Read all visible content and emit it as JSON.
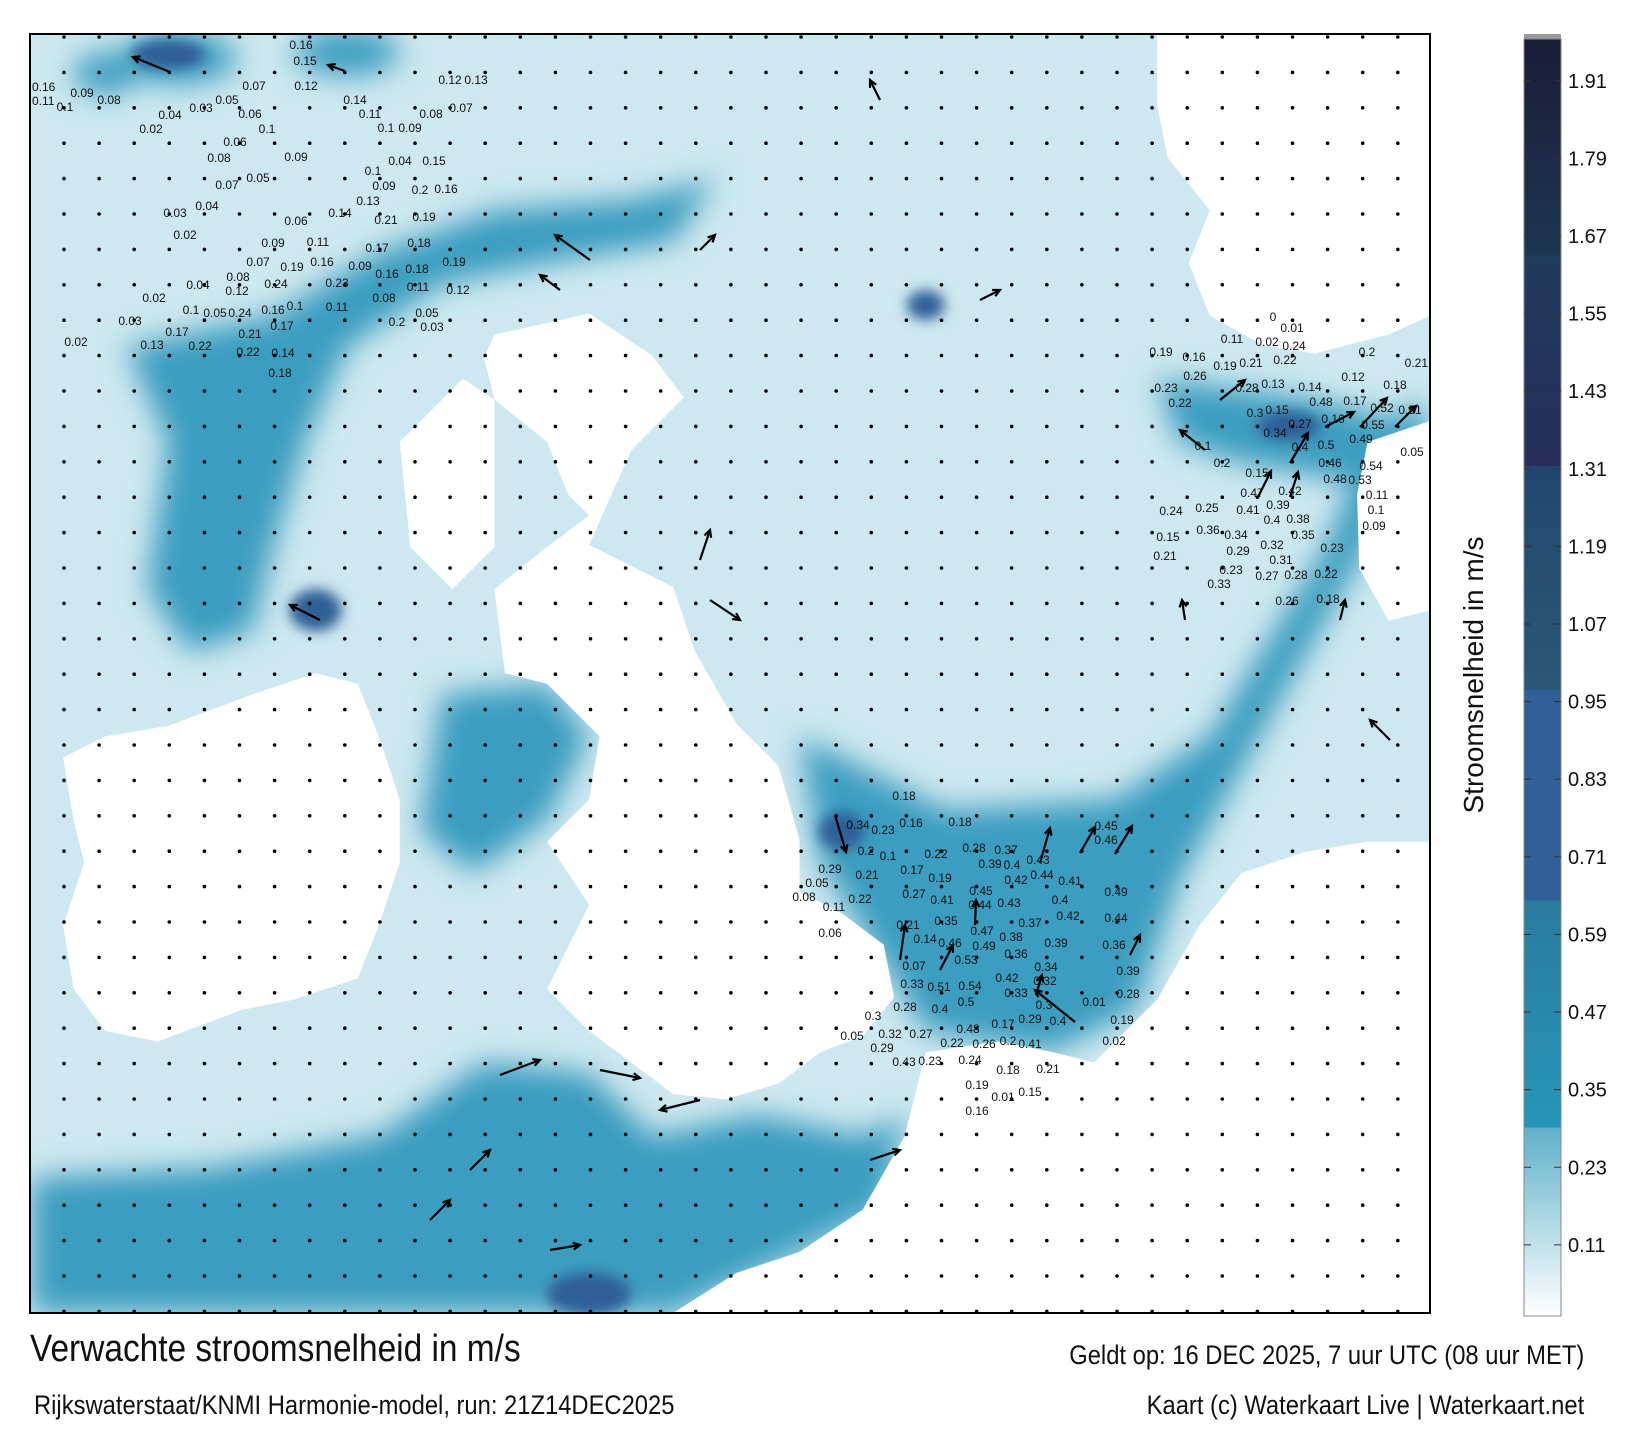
{
  "title": "Verwachte stroomsnelheid in m/s",
  "valid_time": "Geldt op: 16 DEC 2025, 7 uur UTC (08 uur MET)",
  "source": "Rijkswaterstaat/KNMI Harmonie-model, run: 21Z14DEC2025",
  "credit": "Kaart (c) Waterkaart Live | Waterkaart.net",
  "colorbar": {
    "title": "Stroomsnelheid in m/s",
    "ticks": [
      "1.91",
      "1.79",
      "1.67",
      "1.55",
      "1.43",
      "1.31",
      "1.19",
      "1.07",
      "0.95",
      "0.83",
      "0.71",
      "0.59",
      "0.47",
      "0.35",
      "0.23",
      "0.11"
    ],
    "colors": {
      "low": "#ffffff",
      "light": "#5fb1c9",
      "mid": "#2596b8",
      "teal": "#2a7b9e",
      "blue": "#2e5f96",
      "steel": "#2a5876",
      "navy": "#22335f",
      "dark": "#1b1c38"
    }
  },
  "map": {
    "colors": {
      "sea": "#cde8f0",
      "channel": "#3a9dbf",
      "deep": "#2a83a8",
      "strong": "#2e5f96",
      "land": "#ffffff",
      "arrow": "#000000"
    },
    "speed_labels": [
      "0.34",
      "0.23",
      "0.2",
      "0.21",
      "0.22",
      "0.05",
      "0.29",
      "0.08",
      "0.11",
      "0.06",
      "0.1",
      "0.17",
      "0.27",
      "0.19",
      "0.41",
      "0.35",
      "0.44",
      "0.45",
      "0.43",
      "0.46",
      "0.47",
      "0.49",
      "0.38",
      "0.37",
      "0.39",
      "0.53",
      "0.54",
      "0.36",
      "0.34",
      "0.32",
      "0.5",
      "0.42",
      "0.33",
      "0.3",
      "0.51",
      "0.48",
      "0.4",
      "0.33",
      "0.07",
      "0.14",
      "0.21",
      "0.43",
      "0.44",
      "0.42",
      "0.4",
      "0.41",
      "0.45",
      "0.46",
      "0.37",
      "0.39",
      "0.4",
      "0.42",
      "0.28",
      "0.22",
      "0.18",
      "0.16",
      "0.18",
      "0.36",
      "0.44",
      "0.49",
      "0.39",
      "0.28",
      "0.19",
      "0.01",
      "0.02",
      "0.4",
      "0.29",
      "0.41",
      "0.26",
      "0.24",
      "0.19",
      "0.22",
      "0.18",
      "0.16",
      "0.01",
      "0.23",
      "0.27",
      "0.28",
      "0.43",
      "0.32",
      "0.3",
      "0.29",
      "0.05",
      "0.15",
      "0.17",
      "0.2",
      "0.21",
      "0.2",
      "0.12",
      "0.18",
      "0.21",
      "0.51",
      "0.52",
      "0.17",
      "0.16",
      "0.48",
      "0.14",
      "0.27",
      "0.15",
      "0.34",
      "0.4",
      "0.3",
      "0.28",
      "0.13",
      "0.5",
      "0.49",
      "0.55",
      "0.54",
      "0.46",
      "0.53",
      "0.48",
      "0.05",
      "0.11",
      "0.1",
      "0.09",
      "0.47",
      "0.42",
      "0.41",
      "0.39",
      "0.4",
      "0.34",
      "0.32",
      "0.38",
      "0.36",
      "0.25",
      "0.29",
      "0.31",
      "0.27",
      "0.35",
      "0.28",
      "0.23",
      "0.22",
      "0.18",
      "0.26",
      "0.23",
      "0.33",
      "0.15",
      "0.21",
      "0.24",
      "0.1",
      "0.2",
      "0.15",
      "0.22",
      "0.26",
      "0.23",
      "0.19",
      "0.16",
      "0.21",
      "0.22",
      "0.24",
      "0.01",
      "0.11",
      "0.19",
      "0.02",
      "0",
      "0.16",
      "0.11",
      "0.1",
      "0.09",
      "0.08",
      "0.16",
      "0.15",
      "0.12",
      "0.07",
      "0.05",
      "0.06",
      "0.04",
      "0.03",
      "0.02",
      "0.1",
      "0.06",
      "0.08",
      "0.07",
      "0.05",
      "0.04",
      "0.09",
      "0.14",
      "0.11",
      "0.1",
      "0.09",
      "0.08",
      "0.12",
      "0.13",
      "0.07",
      "0.03",
      "0.02",
      "0.04",
      "0.15",
      "0.09",
      "0.1",
      "0.13",
      "0.2",
      "0.19",
      "0.16",
      "0.14",
      "0.06",
      "0.11",
      "0.17",
      "0.18",
      "0.09",
      "0.19",
      "0.16",
      "0.09",
      "0.16",
      "0.18",
      "0.21",
      "0.19",
      "0.07",
      "0.08",
      "0.12",
      "0.24",
      "0.16",
      "0.1",
      "0.23",
      "0.08",
      "0.11",
      "0.12",
      "0.04",
      "0.02",
      "0.03",
      "0.05",
      "0.1",
      "0.21",
      "0.24",
      "0.17",
      "0.14",
      "0.22",
      "0.17",
      "0.22",
      "0.02",
      "0.13",
      "0.18",
      "0.11",
      "0.2",
      "0.05",
      "0.03"
    ]
  }
}
